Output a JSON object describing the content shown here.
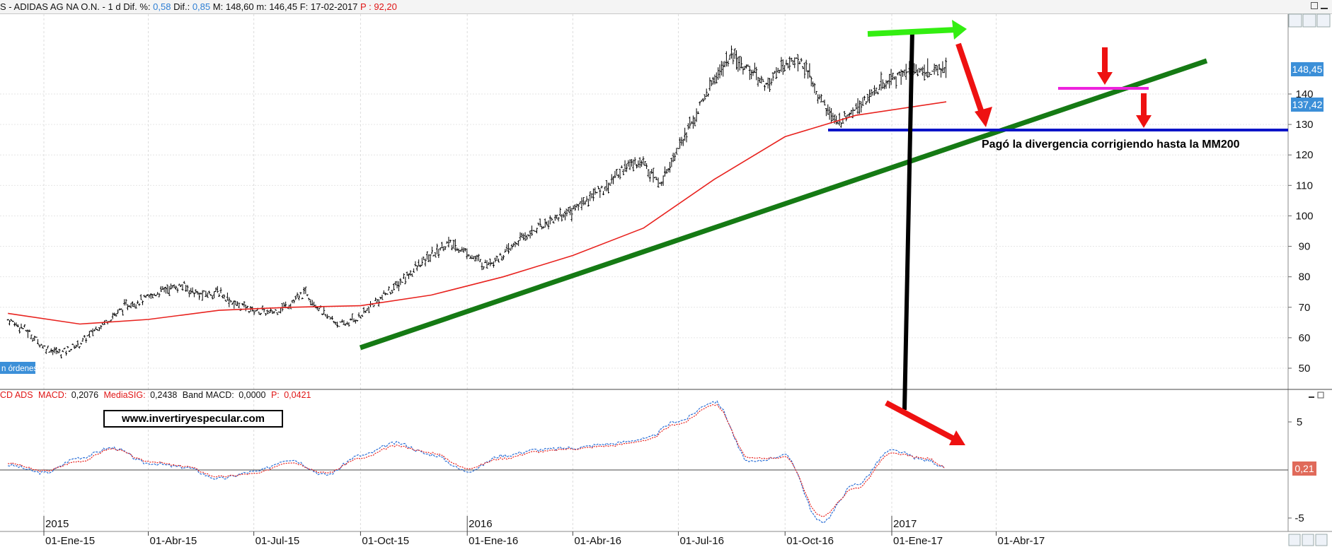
{
  "header": {
    "prefix": "S",
    "instrument": "ADIDAS AG NA O.N.",
    "period": "1 d",
    "dif_pct_label": "Dif. %:",
    "dif_pct": "0,58",
    "dif_label": "Dif.:",
    "dif": "0,85",
    "max_label": "M:",
    "max": "148,60",
    "min_label": "m:",
    "min": "146,45",
    "date_label": "F:",
    "date": "17-02-2017",
    "p_label": "P :",
    "p": "92,20"
  },
  "price_labels": {
    "last": "148,45",
    "ma200": "137,42",
    "orders_tag": "n órdenes"
  },
  "indicator_header": {
    "name": "CD ADS",
    "macd_label": "MACD:",
    "macd": "0,2076",
    "sig_label": "MediaSIG:",
    "sig": "0,2438",
    "band_label": "Band MACD:",
    "band": "0,0000",
    "p_label": "P:",
    "p": "0,0421",
    "last_value": "0,21"
  },
  "annotations": {
    "divergence_text": "Pagó la divergencia corrigiendo hasta la MM200",
    "website": "www.invertiryespecular.com"
  },
  "colors": {
    "price_bars": "#000000",
    "ma200": "#e8231f",
    "trendline": "#157a14",
    "support": "#0b14c8",
    "green_arrow": "#33ee11",
    "red_arrow": "#ee1111",
    "magenta_line": "#ee22dd",
    "macd": "#2a6fd6",
    "signal": "#e8231f",
    "label_blue": "#3b8fd8",
    "label_red": "#e06a5a"
  },
  "chart_data": [
    {
      "type": "line",
      "title": "",
      "series": [
        {
          "name": "ADIDAS AG NA O.N.",
          "style": "ohlc-bars",
          "x": [
            "2014-12-01",
            "2014-12-15",
            "2015-01-01",
            "2015-01-15",
            "2015-02-01",
            "2015-02-15",
            "2015-03-01",
            "2015-03-15",
            "2015-04-01",
            "2015-04-15",
            "2015-05-01",
            "2015-05-15",
            "2015-06-01",
            "2015-06-15",
            "2015-07-01",
            "2015-07-15",
            "2015-08-01",
            "2015-08-15",
            "2015-09-01",
            "2015-09-15",
            "2015-10-01",
            "2015-10-15",
            "2015-11-01",
            "2015-11-15",
            "2015-12-01",
            "2015-12-15",
            "2016-01-01",
            "2016-01-15",
            "2016-02-01",
            "2016-02-15",
            "2016-03-01",
            "2016-03-15",
            "2016-04-01",
            "2016-04-15",
            "2016-05-01",
            "2016-05-15",
            "2016-06-01",
            "2016-06-15",
            "2016-07-01",
            "2016-07-15",
            "2016-08-01",
            "2016-08-15",
            "2016-09-01",
            "2016-09-15",
            "2016-10-01",
            "2016-10-15",
            "2016-11-01",
            "2016-11-15",
            "2016-12-01",
            "2016-12-15",
            "2017-01-01",
            "2017-01-15",
            "2017-02-01",
            "2017-02-17"
          ],
          "values": [
            66,
            63,
            57,
            55,
            58,
            63,
            67,
            71,
            73,
            76,
            77,
            74,
            75,
            71,
            69,
            68,
            71,
            75,
            67,
            64,
            67,
            72,
            77,
            82,
            87,
            91,
            88,
            84,
            87,
            92,
            96,
            99,
            102,
            106,
            110,
            116,
            118,
            110,
            123,
            132,
            145,
            152,
            148,
            143,
            150,
            151,
            138,
            130,
            136,
            140,
            145,
            148,
            147,
            148.45
          ]
        },
        {
          "name": "MM200",
          "x": [
            "2014-12-01",
            "2015-02-01",
            "2015-04-01",
            "2015-06-01",
            "2015-08-01",
            "2015-10-01",
            "2015-12-01",
            "2016-02-01",
            "2016-04-01",
            "2016-06-01",
            "2016-08-01",
            "2016-10-01",
            "2016-12-01",
            "2017-02-17"
          ],
          "values": [
            68,
            64.5,
            66,
            69,
            70,
            70.5,
            74,
            80,
            87,
            96,
            112,
            126,
            133,
            137.42
          ]
        }
      ],
      "xlabel": "",
      "ylabel": "",
      "x_ticks": [
        "01-Ene-15",
        "01-Abr-15",
        "01-Jul-15",
        "01-Oct-15",
        "01-Ene-16",
        "01-Abr-16",
        "01-Jul-16",
        "01-Oct-16",
        "01-Ene-17",
        "01-Abr-17"
      ],
      "year_labels": [
        "2015",
        "2016",
        "2017"
      ],
      "y_ticks": [
        50,
        60,
        70,
        80,
        90,
        100,
        110,
        120,
        130,
        140
      ],
      "ylim": [
        45,
        162
      ],
      "grid": true
    },
    {
      "type": "line",
      "title": "",
      "series": [
        {
          "name": "MACD",
          "x": [
            "2014-12-01",
            "2015-01-01",
            "2015-02-01",
            "2015-03-01",
            "2015-04-01",
            "2015-05-01",
            "2015-06-01",
            "2015-07-01",
            "2015-08-01",
            "2015-09-01",
            "2015-10-01",
            "2015-11-01",
            "2015-12-01",
            "2016-01-01",
            "2016-02-01",
            "2016-03-01",
            "2016-04-01",
            "2016-05-01",
            "2016-06-01",
            "2016-07-01",
            "2016-08-01",
            "2016-09-01",
            "2016-10-01",
            "2016-11-01",
            "2016-12-01",
            "2017-01-01",
            "2017-02-01",
            "2017-02-17"
          ],
          "values": [
            0.5,
            -0.3,
            1.3,
            2.3,
            0.7,
            0.3,
            -0.9,
            -0.2,
            1.1,
            -0.5,
            1.5,
            2.8,
            1.6,
            -0.1,
            1.5,
            2.1,
            2.3,
            2.7,
            3.2,
            5.1,
            7.1,
            0.8,
            1.5,
            -5.4,
            -1.5,
            2.0,
            1.0,
            0.21
          ]
        },
        {
          "name": "MediaSIG",
          "x": [
            "2014-12-01",
            "2015-01-01",
            "2015-02-01",
            "2015-03-01",
            "2015-04-01",
            "2015-05-01",
            "2015-06-01",
            "2015-07-01",
            "2015-08-01",
            "2015-09-01",
            "2015-10-01",
            "2015-11-01",
            "2015-12-01",
            "2016-01-01",
            "2016-02-01",
            "2016-03-01",
            "2016-04-01",
            "2016-05-01",
            "2016-06-01",
            "2016-07-01",
            "2016-08-01",
            "2016-09-01",
            "2016-10-01",
            "2016-11-01",
            "2016-12-01",
            "2017-01-01",
            "2017-02-01",
            "2017-02-17"
          ],
          "values": [
            0.7,
            -0.1,
            0.9,
            2.2,
            0.9,
            0.4,
            -0.7,
            -0.4,
            0.8,
            -0.3,
            1.2,
            2.5,
            1.8,
            0.2,
            1.2,
            1.9,
            2.2,
            2.5,
            3.0,
            4.8,
            6.8,
            1.2,
            1.3,
            -4.8,
            -1.9,
            1.7,
            1.2,
            0.24
          ]
        }
      ],
      "y_ticks": [
        -5,
        5
      ],
      "ylim": [
        -7,
        9
      ],
      "grid": false
    }
  ]
}
